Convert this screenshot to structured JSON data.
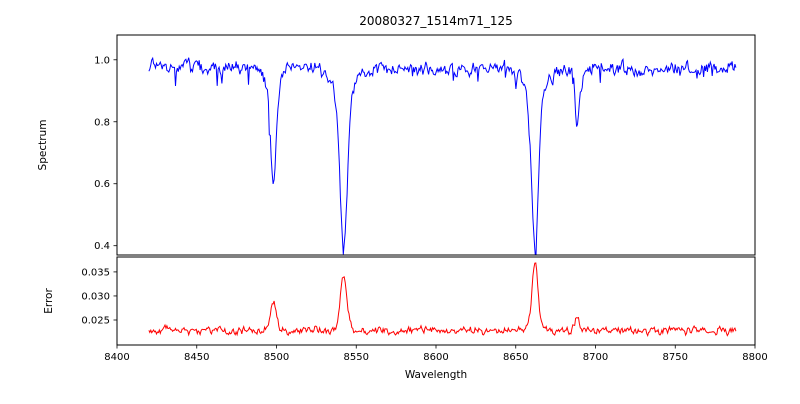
{
  "figure": {
    "title": "20080327_1514m71_125"
  },
  "chart_data": {
    "type": "line",
    "title": "20080327_1514m71_125",
    "xlabel": "Wavelength",
    "grid": false,
    "legend": "none",
    "x_range": [
      8400,
      8800
    ],
    "x_tick_values": [
      8400,
      8450,
      8500,
      8550,
      8600,
      8650,
      8700,
      8750,
      8800
    ],
    "x_tick_labels": [
      "8400",
      "8450",
      "8500",
      "8550",
      "8600",
      "8650",
      "8700",
      "8750",
      "8800"
    ],
    "data_x_range": [
      8420,
      8788
    ],
    "n_points": 620,
    "noise_seed": 20080327,
    "panels": [
      {
        "name": "spectrum",
        "ylabel": "Spectrum",
        "color": "#0000ff",
        "ylim": [
          0.37,
          1.08
        ],
        "y_tick_values": [
          1.0,
          0.8,
          0.6,
          0.4
        ],
        "y_tick_labels": [
          "1.0",
          "0.8",
          "0.6",
          "0.4"
        ],
        "baseline": 0.972,
        "noise_amp": 0.05,
        "spike_prob": 0.05,
        "spike_amp": 0.05,
        "features": [
          {
            "center": 8498.0,
            "amp": -0.33,
            "sigma": 1.8
          },
          {
            "center": 8498.0,
            "amp": -0.05,
            "sigma": 5.0
          },
          {
            "center": 8542.1,
            "amp": -0.5,
            "sigma": 2.2
          },
          {
            "center": 8542.1,
            "amp": -0.08,
            "sigma": 7.0
          },
          {
            "center": 8662.1,
            "amp": -0.49,
            "sigma": 2.1
          },
          {
            "center": 8662.1,
            "amp": -0.08,
            "sigma": 6.5
          },
          {
            "center": 8688.6,
            "amp": -0.19,
            "sigma": 1.4
          }
        ],
        "absorption_line_minima": {
          "8498": 0.59,
          "8542": 0.4,
          "8662": 0.4,
          "8688": 0.78
        }
      },
      {
        "name": "error",
        "ylabel": "Error",
        "color": "#ff0000",
        "ylim": [
          0.0198,
          0.0381
        ],
        "y_tick_values": [
          0.035,
          0.03,
          0.025
        ],
        "y_tick_labels": [
          "0.035",
          "0.030",
          "0.025"
        ],
        "baseline": 0.0228,
        "noise_amp": 0.0018,
        "spike_prob": 0,
        "spike_amp": 0,
        "features": [
          {
            "center": 8498.0,
            "amp": 0.0055,
            "sigma": 1.6
          },
          {
            "center": 8498.0,
            "amp": 0.0008,
            "sigma": 4.0
          },
          {
            "center": 8542.1,
            "amp": 0.0105,
            "sigma": 1.9
          },
          {
            "center": 8542.1,
            "amp": 0.0012,
            "sigma": 5.0
          },
          {
            "center": 8662.1,
            "amp": 0.013,
            "sigma": 1.7
          },
          {
            "center": 8662.1,
            "amp": 0.0012,
            "sigma": 5.0
          },
          {
            "center": 8688.6,
            "amp": 0.0028,
            "sigma": 1.3
          }
        ],
        "error_peak_maxima": {
          "8498": 0.029,
          "8542": 0.035,
          "8662": 0.037,
          "8688": 0.026
        }
      }
    ]
  }
}
